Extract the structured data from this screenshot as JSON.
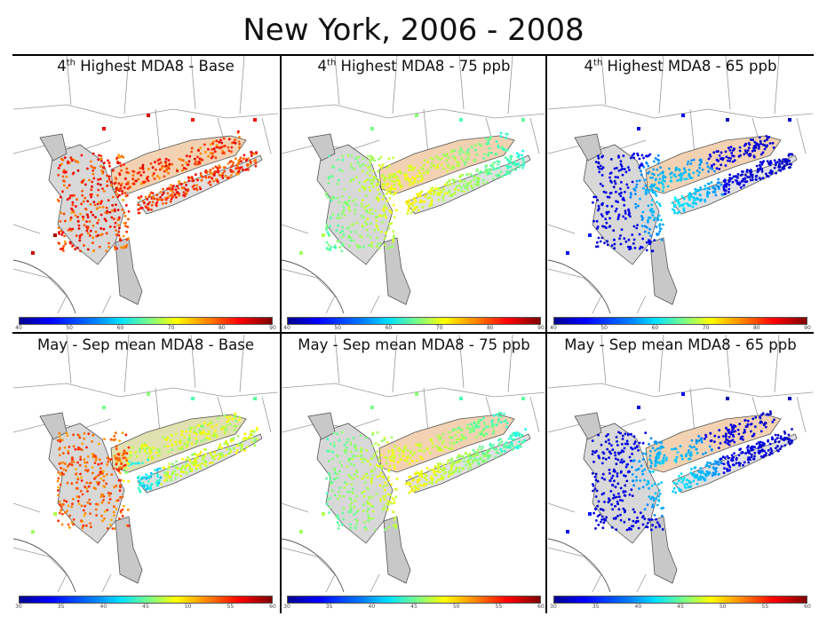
{
  "title": "New York, 2006 - 2008",
  "colorbars": {
    "top": {
      "ticks": [
        "40",
        "50",
        "60",
        "70",
        "80",
        "90"
      ],
      "range": [
        40,
        90
      ]
    },
    "bottom": {
      "ticks": [
        "30",
        "35",
        "40",
        "45",
        "50",
        "55",
        "60"
      ],
      "range": [
        30,
        60
      ]
    }
  },
  "panels": [
    {
      "num": "4",
      "sup": "th",
      "label": " Highest MDA8 - Base",
      "scheme": "high",
      "colorbar": "top"
    },
    {
      "num": "4",
      "sup": "th",
      "label": " Highest MDA8 - 75 ppb",
      "scheme": "mid",
      "colorbar": "top"
    },
    {
      "num": "4",
      "sup": "th",
      "label": " Highest MDA8 - 65 ppb",
      "scheme": "low",
      "colorbar": "top"
    },
    {
      "num": "",
      "sup": "",
      "label": "May - Sep mean MDA8 - Base",
      "scheme": "meanbase",
      "colorbar": "bottom"
    },
    {
      "num": "",
      "sup": "",
      "label": "May - Sep mean MDA8 - 75 ppb",
      "scheme": "mid",
      "colorbar": "bottom"
    },
    {
      "num": "",
      "sup": "",
      "label": "May - Sep mean MDA8 - 65 ppb",
      "scheme": "low",
      "colorbar": "bottom"
    }
  ]
}
